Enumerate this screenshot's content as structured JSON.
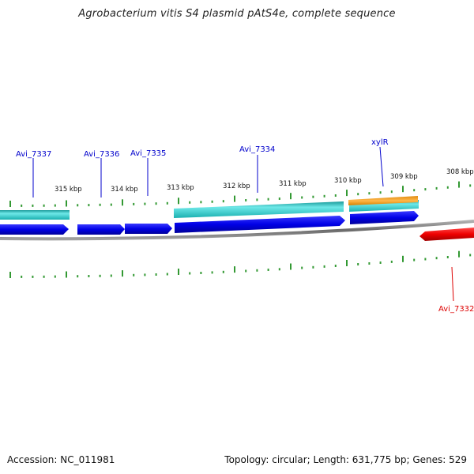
{
  "title": "Agrobacterium vitis S4 plasmid pAtS4e, complete sequence",
  "footer": {
    "accession": "Accession: NC_011981",
    "summary": "Topology: circular; Length: 631,775 bp; Genes: 529"
  },
  "colors": {
    "forward_cds": "#0000ee",
    "reverse_cds": "#ee0000",
    "teal_feature": "#22c8c8",
    "orange_feature": "#f5a020",
    "ticks": "#339933",
    "backbone": "#888888",
    "label_forward": "#0000cc",
    "label_reverse": "#dd0000"
  },
  "ruler_labels": [
    "315 kbp",
    "314 kbp",
    "313 kbp",
    "312 kbp",
    "311 kbp",
    "310 kbp",
    "309 kbp",
    "308 kbp"
  ],
  "gene_labels": [
    {
      "label": "Avi_7337",
      "strand": "forward"
    },
    {
      "label": "Avi_7336",
      "strand": "forward"
    },
    {
      "label": "Avi_7335",
      "strand": "forward"
    },
    {
      "label": "Avi_7334",
      "strand": "forward"
    },
    {
      "label": "xylR",
      "strand": "forward"
    },
    {
      "label": "Avi_7332",
      "strand": "reverse"
    }
  ]
}
